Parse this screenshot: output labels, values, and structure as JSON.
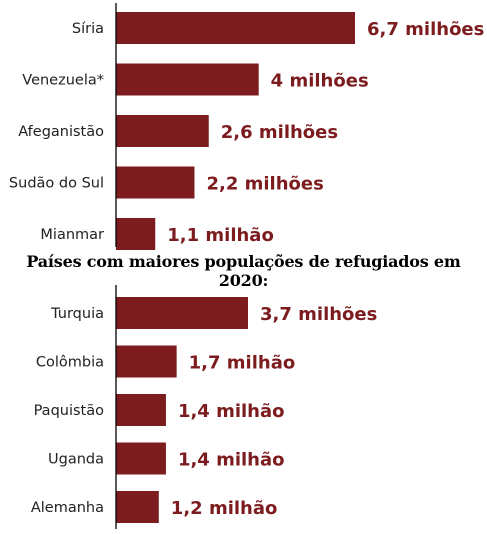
{
  "colors": {
    "bar": "#7c1c1f",
    "value_text": "#7c1c1f",
    "axis": "#000000",
    "category_text": "#222222"
  },
  "middle_title": "Países com maiores populações de refugiados em 2020:",
  "chart_data": [
    {
      "type": "bar",
      "orientation": "horizontal",
      "title": "",
      "categories": [
        "Síria",
        "Venezuela*",
        "Afeganistão",
        "Sudão do Sul",
        "Mianmar"
      ],
      "values": [
        6.7,
        4.0,
        2.6,
        2.2,
        1.1
      ],
      "value_labels": [
        "6,7 milhões",
        "4 milhões",
        "2,6 milhões",
        "2,2 milhões",
        "1,1 milhão"
      ],
      "unit": "milhões",
      "xlim": [
        0,
        6.7
      ],
      "grid": false,
      "legend": "none"
    },
    {
      "type": "bar",
      "orientation": "horizontal",
      "title": "Países com maiores populações de refugiados em 2020:",
      "categories": [
        "Turquia",
        "Colômbia",
        "Paquistão",
        "Uganda",
        "Alemanha"
      ],
      "values": [
        3.7,
        1.7,
        1.4,
        1.4,
        1.2
      ],
      "value_labels": [
        "3,7 milhões",
        "1,7 milhão",
        "1,4 milhão",
        "1,4 milhão",
        "1,2 milhão"
      ],
      "unit": "milhões",
      "xlim": [
        0,
        6.7
      ],
      "grid": false,
      "legend": "none"
    }
  ]
}
